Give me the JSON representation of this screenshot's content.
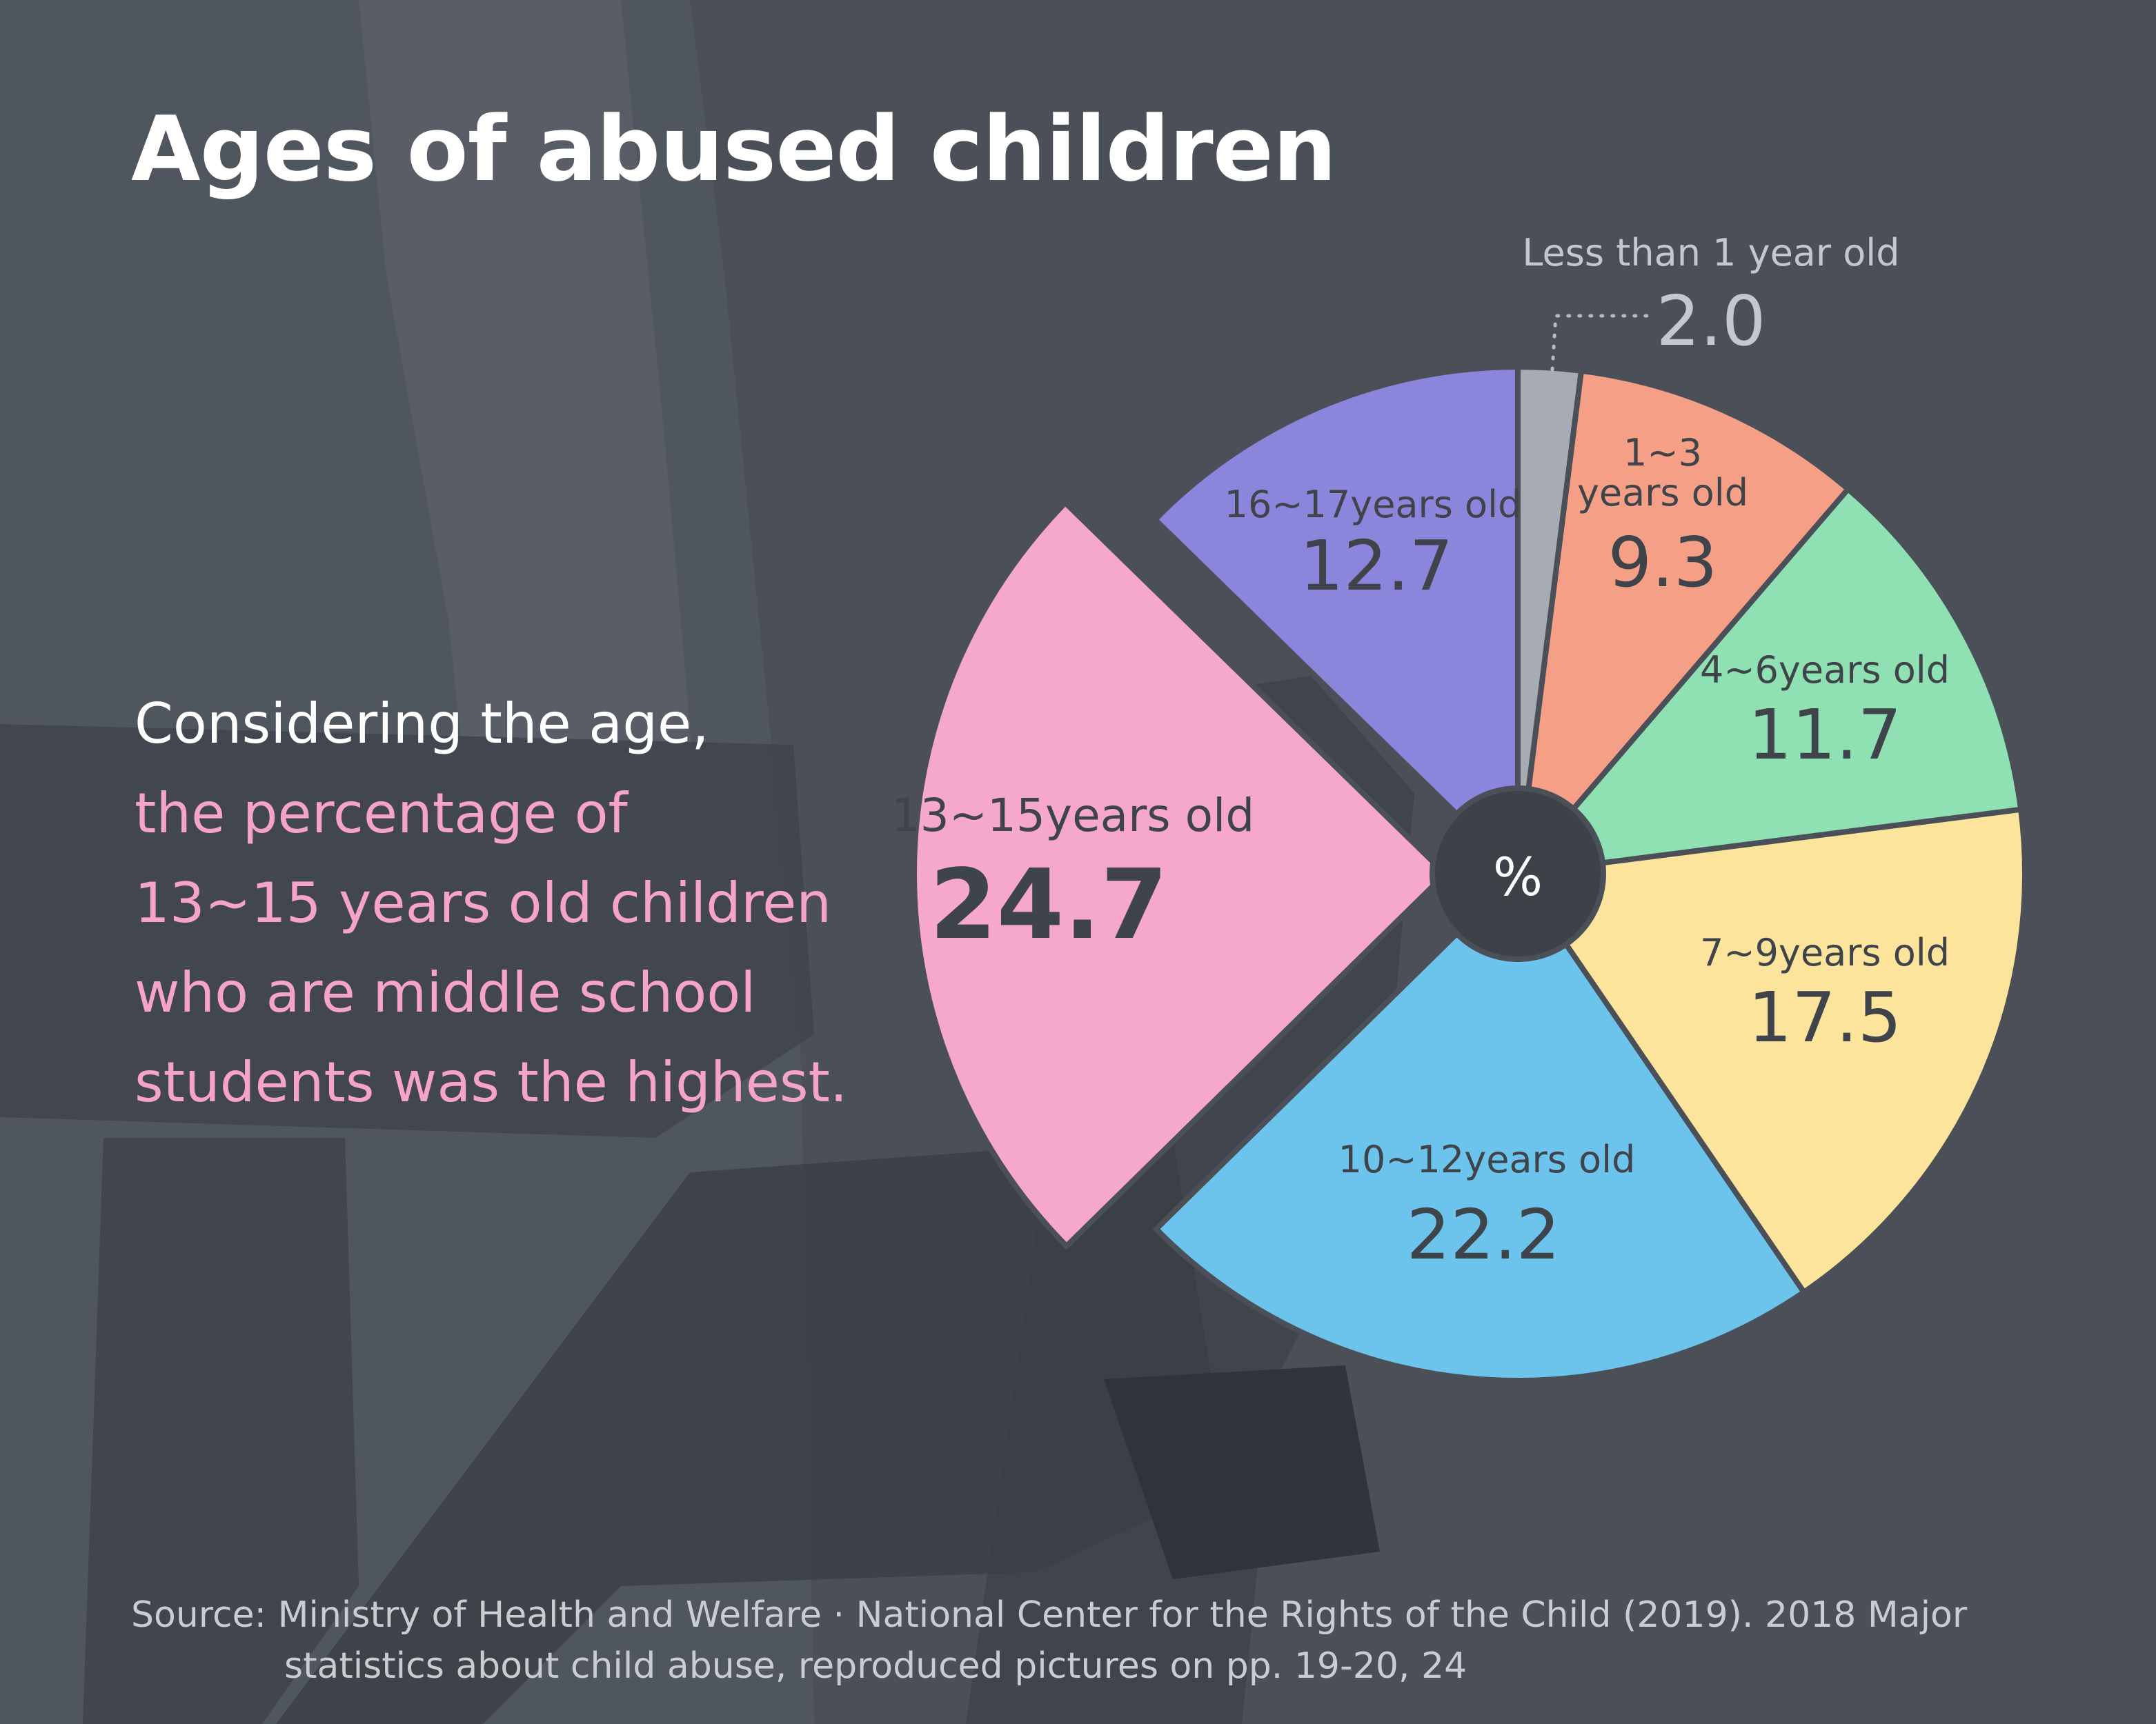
{
  "title": "Ages of abused children",
  "description": {
    "line1": "Considering the age,",
    "line2": "the percentage of",
    "line3": "13~15 years old children",
    "line4": "who are middle school",
    "line5": "students was the highest."
  },
  "source": {
    "line1": "Source: Ministry of Health and Welfare · National Center for the Rights of the Child (2019). 2018 Major",
    "line2": "statistics about child abuse, reproduced pictures on pp. 19-20, 24"
  },
  "colors": {
    "background": "#4b5058",
    "accent_pink": "#f5a3c7",
    "center": "#3d4148"
  },
  "chart_data": {
    "type": "pie",
    "title": "Ages of abused children",
    "unit": "%",
    "categories": [
      "Less than 1 year old",
      "1~3 years old",
      "4~6years old",
      "7~9years old",
      "10~12years old",
      "13~15years old",
      "16~17years old"
    ],
    "values": [
      2.0,
      9.3,
      11.7,
      17.5,
      22.2,
      24.7,
      12.7
    ],
    "slices": [
      {
        "label": "Less than 1 year old",
        "value": 2.0,
        "color": "#a7abb3"
      },
      {
        "label": "1~3 years old",
        "label_lines": [
          "1~3",
          "years old"
        ],
        "value": 9.3,
        "color": "#f59f86"
      },
      {
        "label": "4~6years old",
        "value": 11.7,
        "color": "#8fe0b2"
      },
      {
        "label": "7~9years old",
        "value": 17.5,
        "color": "#fde49c"
      },
      {
        "label": "10~12years old",
        "value": 22.2,
        "color": "#6cc3ec"
      },
      {
        "label": "13~15years old",
        "value": 24.7,
        "color": "#f6a7cc",
        "highlighted": true
      },
      {
        "label": "16~17years old",
        "value": 12.7,
        "color": "#8b86dc"
      }
    ]
  }
}
